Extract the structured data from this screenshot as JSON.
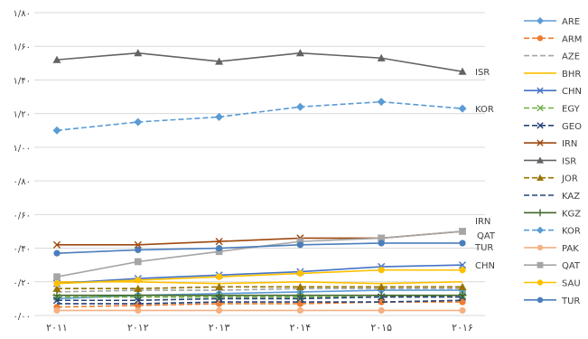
{
  "chart_data": {
    "type": "line",
    "title": "",
    "xlabel": "",
    "ylabel": "",
    "categories": [
      "۲۰۱۱",
      "۲۰۱۲",
      "۲۰۱۳",
      "۲۰۱۴",
      "۲۰۱۵",
      "۲۰۱۶"
    ],
    "yticks": [
      "۰/۰۰",
      "۰/۲۰",
      "۰/۴۰",
      "۰/۶۰",
      "۰/۸۰",
      "۱/۰۰",
      "۱/۲۰",
      "۱/۴۰",
      "۱/۶۰",
      "۱/۸۰"
    ],
    "ylim": [
      0,
      1.8
    ],
    "grid": "horizontal",
    "legend_position": "right",
    "end_labels": [
      "ISR",
      "KOR",
      "IRN",
      "QAT",
      "TUR",
      "CHN"
    ],
    "series": [
      {
        "name": "ARE",
        "color": "#5b9bd5",
        "style": "solid",
        "marker": "diamond",
        "values": [
          0.1,
          0.12,
          0.13,
          0.14,
          0.15,
          0.15
        ]
      },
      {
        "name": "ARM",
        "color": "#ed7d31",
        "style": "dash",
        "marker": "circle",
        "values": [
          0.05,
          0.06,
          0.07,
          0.07,
          0.08,
          0.08
        ]
      },
      {
        "name": "AZE",
        "color": "#a5a5a5",
        "style": "dash",
        "marker": "none",
        "values": [
          0.14,
          0.15,
          0.15,
          0.16,
          0.16,
          0.16
        ]
      },
      {
        "name": "BHR",
        "color": "#ffc000",
        "style": "solid",
        "marker": "none",
        "values": [
          0.2,
          0.2,
          0.19,
          0.2,
          0.19,
          0.2
        ]
      },
      {
        "name": "CHN",
        "color": "#4472c4",
        "style": "solid",
        "marker": "x",
        "values": [
          0.19,
          0.22,
          0.24,
          0.26,
          0.29,
          0.3
        ]
      },
      {
        "name": "EGY",
        "color": "#70ad47",
        "style": "dash",
        "marker": "x",
        "values": [
          0.11,
          0.11,
          0.11,
          0.11,
          0.11,
          0.12
        ]
      },
      {
        "name": "GEO",
        "color": "#264478",
        "style": "dash",
        "marker": "x",
        "values": [
          0.09,
          0.09,
          0.1,
          0.1,
          0.11,
          0.11
        ]
      },
      {
        "name": "IRN",
        "color": "#9e480e",
        "style": "solid",
        "marker": "x",
        "values": [
          0.42,
          0.42,
          0.44,
          0.46,
          0.46,
          0.5
        ]
      },
      {
        "name": "ISR",
        "color": "#636363",
        "style": "solid",
        "marker": "triangle",
        "values": [
          1.52,
          1.56,
          1.51,
          1.56,
          1.53,
          1.45
        ]
      },
      {
        "name": "JOR",
        "color": "#997300",
        "style": "dash",
        "marker": "triangle",
        "values": [
          0.16,
          0.16,
          0.17,
          0.17,
          0.17,
          0.17
        ]
      },
      {
        "name": "KAZ",
        "color": "#264478",
        "style": "dash",
        "marker": "none",
        "values": [
          0.07,
          0.07,
          0.08,
          0.08,
          0.08,
          0.09
        ]
      },
      {
        "name": "KGZ",
        "color": "#43682b",
        "style": "solid",
        "marker": "plus",
        "values": [
          0.12,
          0.12,
          0.12,
          0.12,
          0.12,
          0.12
        ]
      },
      {
        "name": "KOR",
        "color": "#5b9bd5",
        "style": "dash",
        "marker": "diamond",
        "values": [
          1.1,
          1.15,
          1.18,
          1.24,
          1.27,
          1.23
        ]
      },
      {
        "name": "PAK",
        "color": "#f4b183",
        "style": "solid",
        "marker": "circle",
        "values": [
          0.03,
          0.03,
          0.03,
          0.03,
          0.03,
          0.03
        ]
      },
      {
        "name": "QAT",
        "color": "#a5a5a5",
        "style": "solid",
        "marker": "square",
        "values": [
          0.23,
          0.32,
          0.38,
          0.44,
          0.46,
          0.5
        ]
      },
      {
        "name": "SAU",
        "color": "#ffc000",
        "style": "solid",
        "marker": "circle",
        "values": [
          0.19,
          0.21,
          0.23,
          0.25,
          0.27,
          0.27
        ]
      },
      {
        "name": "TUR",
        "color": "#4a7ebb",
        "style": "solid",
        "marker": "circle",
        "values": [
          0.37,
          0.39,
          0.4,
          0.42,
          0.43,
          0.43
        ]
      }
    ]
  }
}
